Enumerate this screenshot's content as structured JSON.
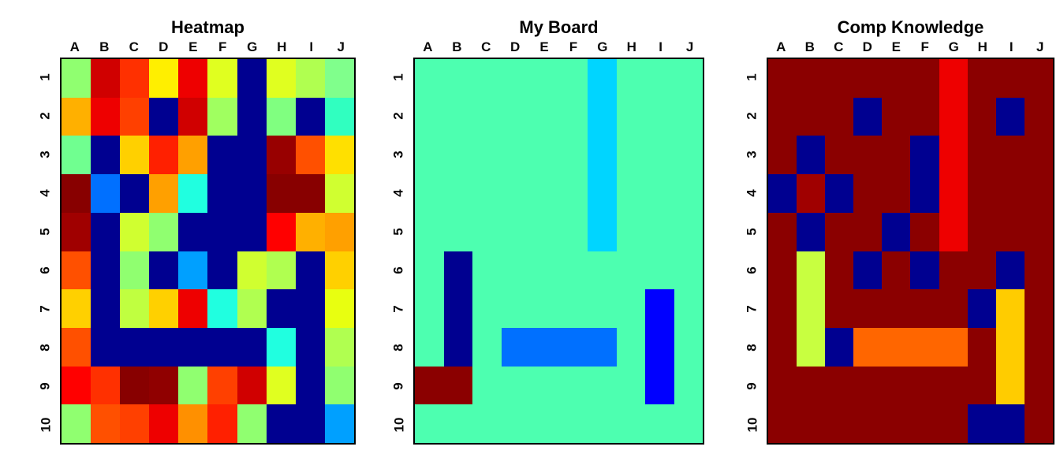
{
  "chart_data": [
    {
      "type": "heatmap",
      "title": "Heatmap",
      "columns": [
        "A",
        "B",
        "C",
        "D",
        "E",
        "F",
        "G",
        "H",
        "I",
        "J"
      ],
      "rows": [
        "1",
        "2",
        "3",
        "4",
        "5",
        "6",
        "7",
        "8",
        "9",
        "10"
      ],
      "grid": true,
      "legend": "none",
      "cells": [
        [
          "#90FF70",
          "#D00000",
          "#FF3000",
          "#FFEF00",
          "#EE0000",
          "#E0FF20",
          "#000090",
          "#E0FF20",
          "#B0FF50",
          "#80FF8C"
        ],
        [
          "#FFB000",
          "#EE0000",
          "#FF4000",
          "#000090",
          "#D00000",
          "#A0FF60",
          "#000090",
          "#80FF80",
          "#000090",
          "#30FFC0"
        ],
        [
          "#70FF90",
          "#000090",
          "#FFD000",
          "#FF2000",
          "#FFA000",
          "#000090",
          "#000090",
          "#980000",
          "#FF5000",
          "#FFE000"
        ],
        [
          "#880000",
          "#0070FF",
          "#000090",
          "#FFA000",
          "#20FFE0",
          "#000090",
          "#000090",
          "#880000",
          "#880000",
          "#D0FF30"
        ],
        [
          "#A00000",
          "#000090",
          "#D0FF30",
          "#90FF70",
          "#000090",
          "#000090",
          "#000090",
          "#FF0000",
          "#FFB000",
          "#FFA000"
        ],
        [
          "#FF5000",
          "#000090",
          "#90FF70",
          "#000090",
          "#00A0FF",
          "#000090",
          "#D0FF30",
          "#B0FF50",
          "#000090",
          "#FFD000"
        ],
        [
          "#FFD000",
          "#000090",
          "#C0FF40",
          "#FFD000",
          "#EE0000",
          "#20FFE0",
          "#B0FF50",
          "#000090",
          "#000090",
          "#E8FF10"
        ],
        [
          "#FF5000",
          "#000090",
          "#000090",
          "#000090",
          "#000090",
          "#000090",
          "#000090",
          "#20FFE0",
          "#000090",
          "#B0FF50"
        ],
        [
          "#FF0000",
          "#FF3000",
          "#880000",
          "#900000",
          "#90FF70",
          "#FF4000",
          "#D00000",
          "#E0FF20",
          "#000090",
          "#90FF70"
        ],
        [
          "#90FF70",
          "#FF5000",
          "#FF4000",
          "#EE0000",
          "#FF9000",
          "#FF2000",
          "#90FF70",
          "#000090",
          "#000090",
          "#00A0FF"
        ]
      ]
    },
    {
      "type": "heatmap",
      "title": "My Board",
      "columns": [
        "A",
        "B",
        "C",
        "D",
        "E",
        "F",
        "G",
        "H",
        "I",
        "J"
      ],
      "rows": [
        "1",
        "2",
        "3",
        "4",
        "5",
        "6",
        "7",
        "8",
        "9",
        "10"
      ],
      "grid": true,
      "legend": "none",
      "background_value_color": "#4DFFB0",
      "cells": [
        [
          "#4DFFB0",
          "#4DFFB0",
          "#4DFFB0",
          "#4DFFB0",
          "#4DFFB0",
          "#4DFFB0",
          "#00D5FF",
          "#4DFFB0",
          "#4DFFB0",
          "#4DFFB0"
        ],
        [
          "#4DFFB0",
          "#4DFFB0",
          "#4DFFB0",
          "#4DFFB0",
          "#4DFFB0",
          "#4DFFB0",
          "#00D5FF",
          "#4DFFB0",
          "#4DFFB0",
          "#4DFFB0"
        ],
        [
          "#4DFFB0",
          "#4DFFB0",
          "#4DFFB0",
          "#4DFFB0",
          "#4DFFB0",
          "#4DFFB0",
          "#00D5FF",
          "#4DFFB0",
          "#4DFFB0",
          "#4DFFB0"
        ],
        [
          "#4DFFB0",
          "#4DFFB0",
          "#4DFFB0",
          "#4DFFB0",
          "#4DFFB0",
          "#4DFFB0",
          "#00D5FF",
          "#4DFFB0",
          "#4DFFB0",
          "#4DFFB0"
        ],
        [
          "#4DFFB0",
          "#4DFFB0",
          "#4DFFB0",
          "#4DFFB0",
          "#4DFFB0",
          "#4DFFB0",
          "#00D5FF",
          "#4DFFB0",
          "#4DFFB0",
          "#4DFFB0"
        ],
        [
          "#4DFFB0",
          "#000090",
          "#4DFFB0",
          "#4DFFB0",
          "#4DFFB0",
          "#4DFFB0",
          "#4DFFB0",
          "#4DFFB0",
          "#4DFFB0",
          "#4DFFB0"
        ],
        [
          "#4DFFB0",
          "#000090",
          "#4DFFB0",
          "#4DFFB0",
          "#4DFFB0",
          "#4DFFB0",
          "#4DFFB0",
          "#4DFFB0",
          "#0000FF",
          "#4DFFB0"
        ],
        [
          "#4DFFB0",
          "#000090",
          "#4DFFB0",
          "#0070FF",
          "#0070FF",
          "#0070FF",
          "#0070FF",
          "#4DFFB0",
          "#0000FF",
          "#4DFFB0"
        ],
        [
          "#8B0000",
          "#8B0000",
          "#4DFFB0",
          "#4DFFB0",
          "#4DFFB0",
          "#4DFFB0",
          "#4DFFB0",
          "#4DFFB0",
          "#0000FF",
          "#4DFFB0"
        ],
        [
          "#4DFFB0",
          "#4DFFB0",
          "#4DFFB0",
          "#4DFFB0",
          "#4DFFB0",
          "#4DFFB0",
          "#4DFFB0",
          "#4DFFB0",
          "#4DFFB0",
          "#4DFFB0"
        ]
      ]
    },
    {
      "type": "heatmap",
      "title": "Comp Knowledge",
      "columns": [
        "A",
        "B",
        "C",
        "D",
        "E",
        "F",
        "G",
        "H",
        "I",
        "J"
      ],
      "rows": [
        "1",
        "2",
        "3",
        "4",
        "5",
        "6",
        "7",
        "8",
        "9",
        "10"
      ],
      "grid": true,
      "legend": "none",
      "background_value_color": "#8B0000",
      "cells": [
        [
          "#8B0000",
          "#8B0000",
          "#8B0000",
          "#8B0000",
          "#8B0000",
          "#8B0000",
          "#EE0000",
          "#8B0000",
          "#8B0000",
          "#8B0000"
        ],
        [
          "#8B0000",
          "#8B0000",
          "#8B0000",
          "#000090",
          "#8B0000",
          "#8B0000",
          "#EE0000",
          "#8B0000",
          "#000090",
          "#8B0000"
        ],
        [
          "#8B0000",
          "#000090",
          "#8B0000",
          "#8B0000",
          "#8B0000",
          "#000090",
          "#EE0000",
          "#8B0000",
          "#8B0000",
          "#8B0000"
        ],
        [
          "#000090",
          "#A00000",
          "#000090",
          "#8B0000",
          "#8B0000",
          "#000090",
          "#EE0000",
          "#8B0000",
          "#8B0000",
          "#8B0000"
        ],
        [
          "#8B0000",
          "#000090",
          "#8B0000",
          "#8B0000",
          "#000090",
          "#8B0000",
          "#EE0000",
          "#8B0000",
          "#8B0000",
          "#8B0000"
        ],
        [
          "#8B0000",
          "#C8FF40",
          "#8B0000",
          "#000090",
          "#8B0000",
          "#000090",
          "#8B0000",
          "#8B0000",
          "#000090",
          "#8B0000"
        ],
        [
          "#8B0000",
          "#C8FF40",
          "#8B0000",
          "#8B0000",
          "#8B0000",
          "#8B0000",
          "#8B0000",
          "#000090",
          "#FFCC00",
          "#8B0000"
        ],
        [
          "#8B0000",
          "#C8FF40",
          "#000090",
          "#FF6600",
          "#FF6600",
          "#FF6600",
          "#FF6600",
          "#8B0000",
          "#FFCC00",
          "#8B0000"
        ],
        [
          "#8B0000",
          "#8B0000",
          "#8B0000",
          "#8B0000",
          "#8B0000",
          "#8B0000",
          "#8B0000",
          "#8B0000",
          "#FFCC00",
          "#8B0000"
        ],
        [
          "#8B0000",
          "#8B0000",
          "#8B0000",
          "#8B0000",
          "#8B0000",
          "#8B0000",
          "#8B0000",
          "#000090",
          "#000090",
          "#8B0000"
        ]
      ]
    }
  ]
}
